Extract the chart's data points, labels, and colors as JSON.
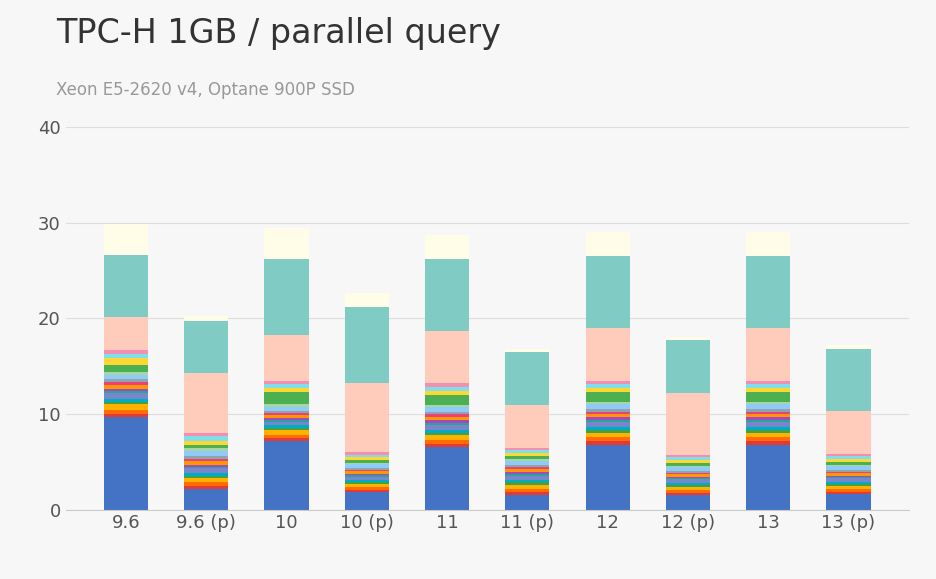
{
  "title": "TPC-H 1GB / parallel query",
  "subtitle": "Xeon E5-2620 v4, Optane 900P SSD",
  "categories": [
    "9.6",
    "9.6 (p)",
    "10",
    "10 (p)",
    "11",
    "11 (p)",
    "12",
    "12 (p)",
    "13",
    "13 (p)"
  ],
  "ylim": [
    0,
    40
  ],
  "yticks": [
    0,
    10,
    20,
    30,
    40
  ],
  "background_color": "#f7f7f7",
  "bar_width": 0.55,
  "layers": [
    {
      "color": "#4472C4",
      "values": [
        9.7,
        2.2,
        7.2,
        1.8,
        6.5,
        1.5,
        6.8,
        1.5,
        6.8,
        1.6
      ]
    },
    {
      "color": "#E53935",
      "values": [
        0.35,
        0.3,
        0.3,
        0.25,
        0.35,
        0.3,
        0.35,
        0.25,
        0.35,
        0.25
      ]
    },
    {
      "color": "#FF6D00",
      "values": [
        0.4,
        0.35,
        0.35,
        0.3,
        0.4,
        0.35,
        0.4,
        0.3,
        0.4,
        0.3
      ]
    },
    {
      "color": "#FFB300",
      "values": [
        0.55,
        0.45,
        0.45,
        0.35,
        0.5,
        0.45,
        0.5,
        0.35,
        0.5,
        0.35
      ]
    },
    {
      "color": "#43A047",
      "values": [
        0.3,
        0.25,
        0.25,
        0.2,
        0.3,
        0.25,
        0.3,
        0.2,
        0.3,
        0.2
      ]
    },
    {
      "color": "#00ACC1",
      "values": [
        0.3,
        0.25,
        0.25,
        0.2,
        0.3,
        0.25,
        0.3,
        0.2,
        0.3,
        0.2
      ]
    },
    {
      "color": "#7986CB",
      "values": [
        0.55,
        0.5,
        0.4,
        0.35,
        0.5,
        0.45,
        0.5,
        0.35,
        0.5,
        0.35
      ]
    },
    {
      "color": "#26A69A",
      "values": [
        0.25,
        0.2,
        0.2,
        0.15,
        0.25,
        0.2,
        0.25,
        0.15,
        0.25,
        0.15
      ]
    },
    {
      "color": "#AB47BC",
      "values": [
        0.25,
        0.2,
        0.2,
        0.15,
        0.25,
        0.2,
        0.25,
        0.15,
        0.25,
        0.15
      ]
    },
    {
      "color": "#FF9800",
      "values": [
        0.4,
        0.35,
        0.3,
        0.25,
        0.35,
        0.3,
        0.35,
        0.25,
        0.35,
        0.25
      ]
    },
    {
      "color": "#EC407A",
      "values": [
        0.25,
        0.2,
        0.2,
        0.15,
        0.25,
        0.2,
        0.25,
        0.15,
        0.25,
        0.15
      ]
    },
    {
      "color": "#90A4AE",
      "values": [
        0.35,
        0.3,
        0.25,
        0.2,
        0.3,
        0.25,
        0.3,
        0.2,
        0.3,
        0.2
      ]
    },
    {
      "color": "#90CAF9",
      "values": [
        0.45,
        0.55,
        0.4,
        0.4,
        0.45,
        0.4,
        0.45,
        0.4,
        0.45,
        0.4
      ]
    },
    {
      "color": "#A5D6A7",
      "values": [
        0.25,
        0.3,
        0.25,
        0.15,
        0.25,
        0.2,
        0.25,
        0.15,
        0.25,
        0.15
      ]
    },
    {
      "color": "#4CAF50",
      "values": [
        0.8,
        0.4,
        1.3,
        0.3,
        1.0,
        0.3,
        1.0,
        0.3,
        1.0,
        0.3
      ]
    },
    {
      "color": "#FDD835",
      "values": [
        0.7,
        0.4,
        0.45,
        0.3,
        0.45,
        0.3,
        0.45,
        0.3,
        0.45,
        0.3
      ]
    },
    {
      "color": "#80DEEA",
      "values": [
        0.4,
        0.45,
        0.35,
        0.25,
        0.4,
        0.3,
        0.4,
        0.25,
        0.4,
        0.25
      ]
    },
    {
      "color": "#F48FB1",
      "values": [
        0.4,
        0.4,
        0.35,
        0.25,
        0.4,
        0.25,
        0.4,
        0.25,
        0.4,
        0.25
      ]
    },
    {
      "color": "#FFCCBC",
      "values": [
        3.5,
        6.2,
        4.8,
        7.2,
        5.5,
        4.5,
        5.5,
        6.5,
        5.5,
        4.5
      ]
    },
    {
      "color": "#80CBC4",
      "values": [
        6.5,
        5.5,
        8.0,
        8.0,
        7.5,
        5.5,
        7.5,
        5.5,
        7.5,
        6.5
      ]
    },
    {
      "color": "#FFFDE7",
      "values": [
        3.2,
        0.5,
        3.2,
        1.5,
        2.5,
        0.4,
        2.5,
        0.4,
        2.5,
        0.4
      ]
    }
  ]
}
